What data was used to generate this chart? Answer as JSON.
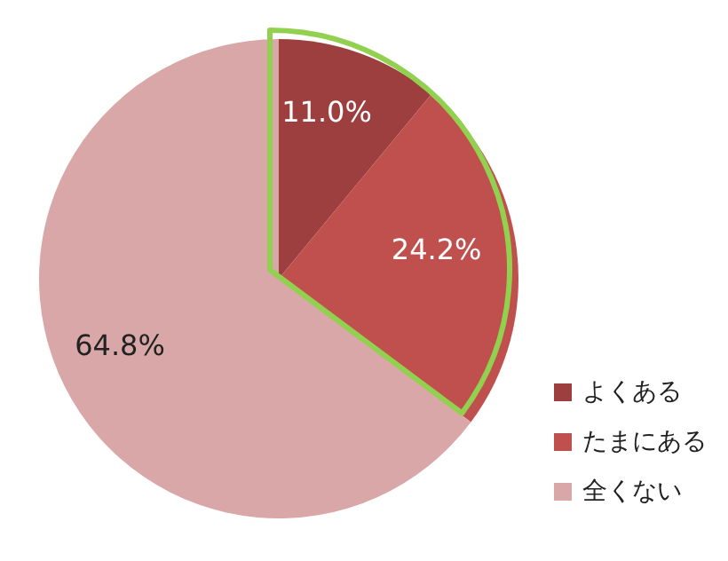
{
  "chart_data": {
    "type": "pie",
    "categories": [
      "よくある",
      "たまにある",
      "全くない"
    ],
    "values": [
      11.0,
      24.2,
      64.8
    ],
    "colors": [
      "#9c3f3e",
      "#c0504d",
      "#d9a7a7"
    ],
    "value_labels": [
      "11.0%",
      "24.2%",
      "64.8%"
    ],
    "legend": "bottom right"
  }
}
